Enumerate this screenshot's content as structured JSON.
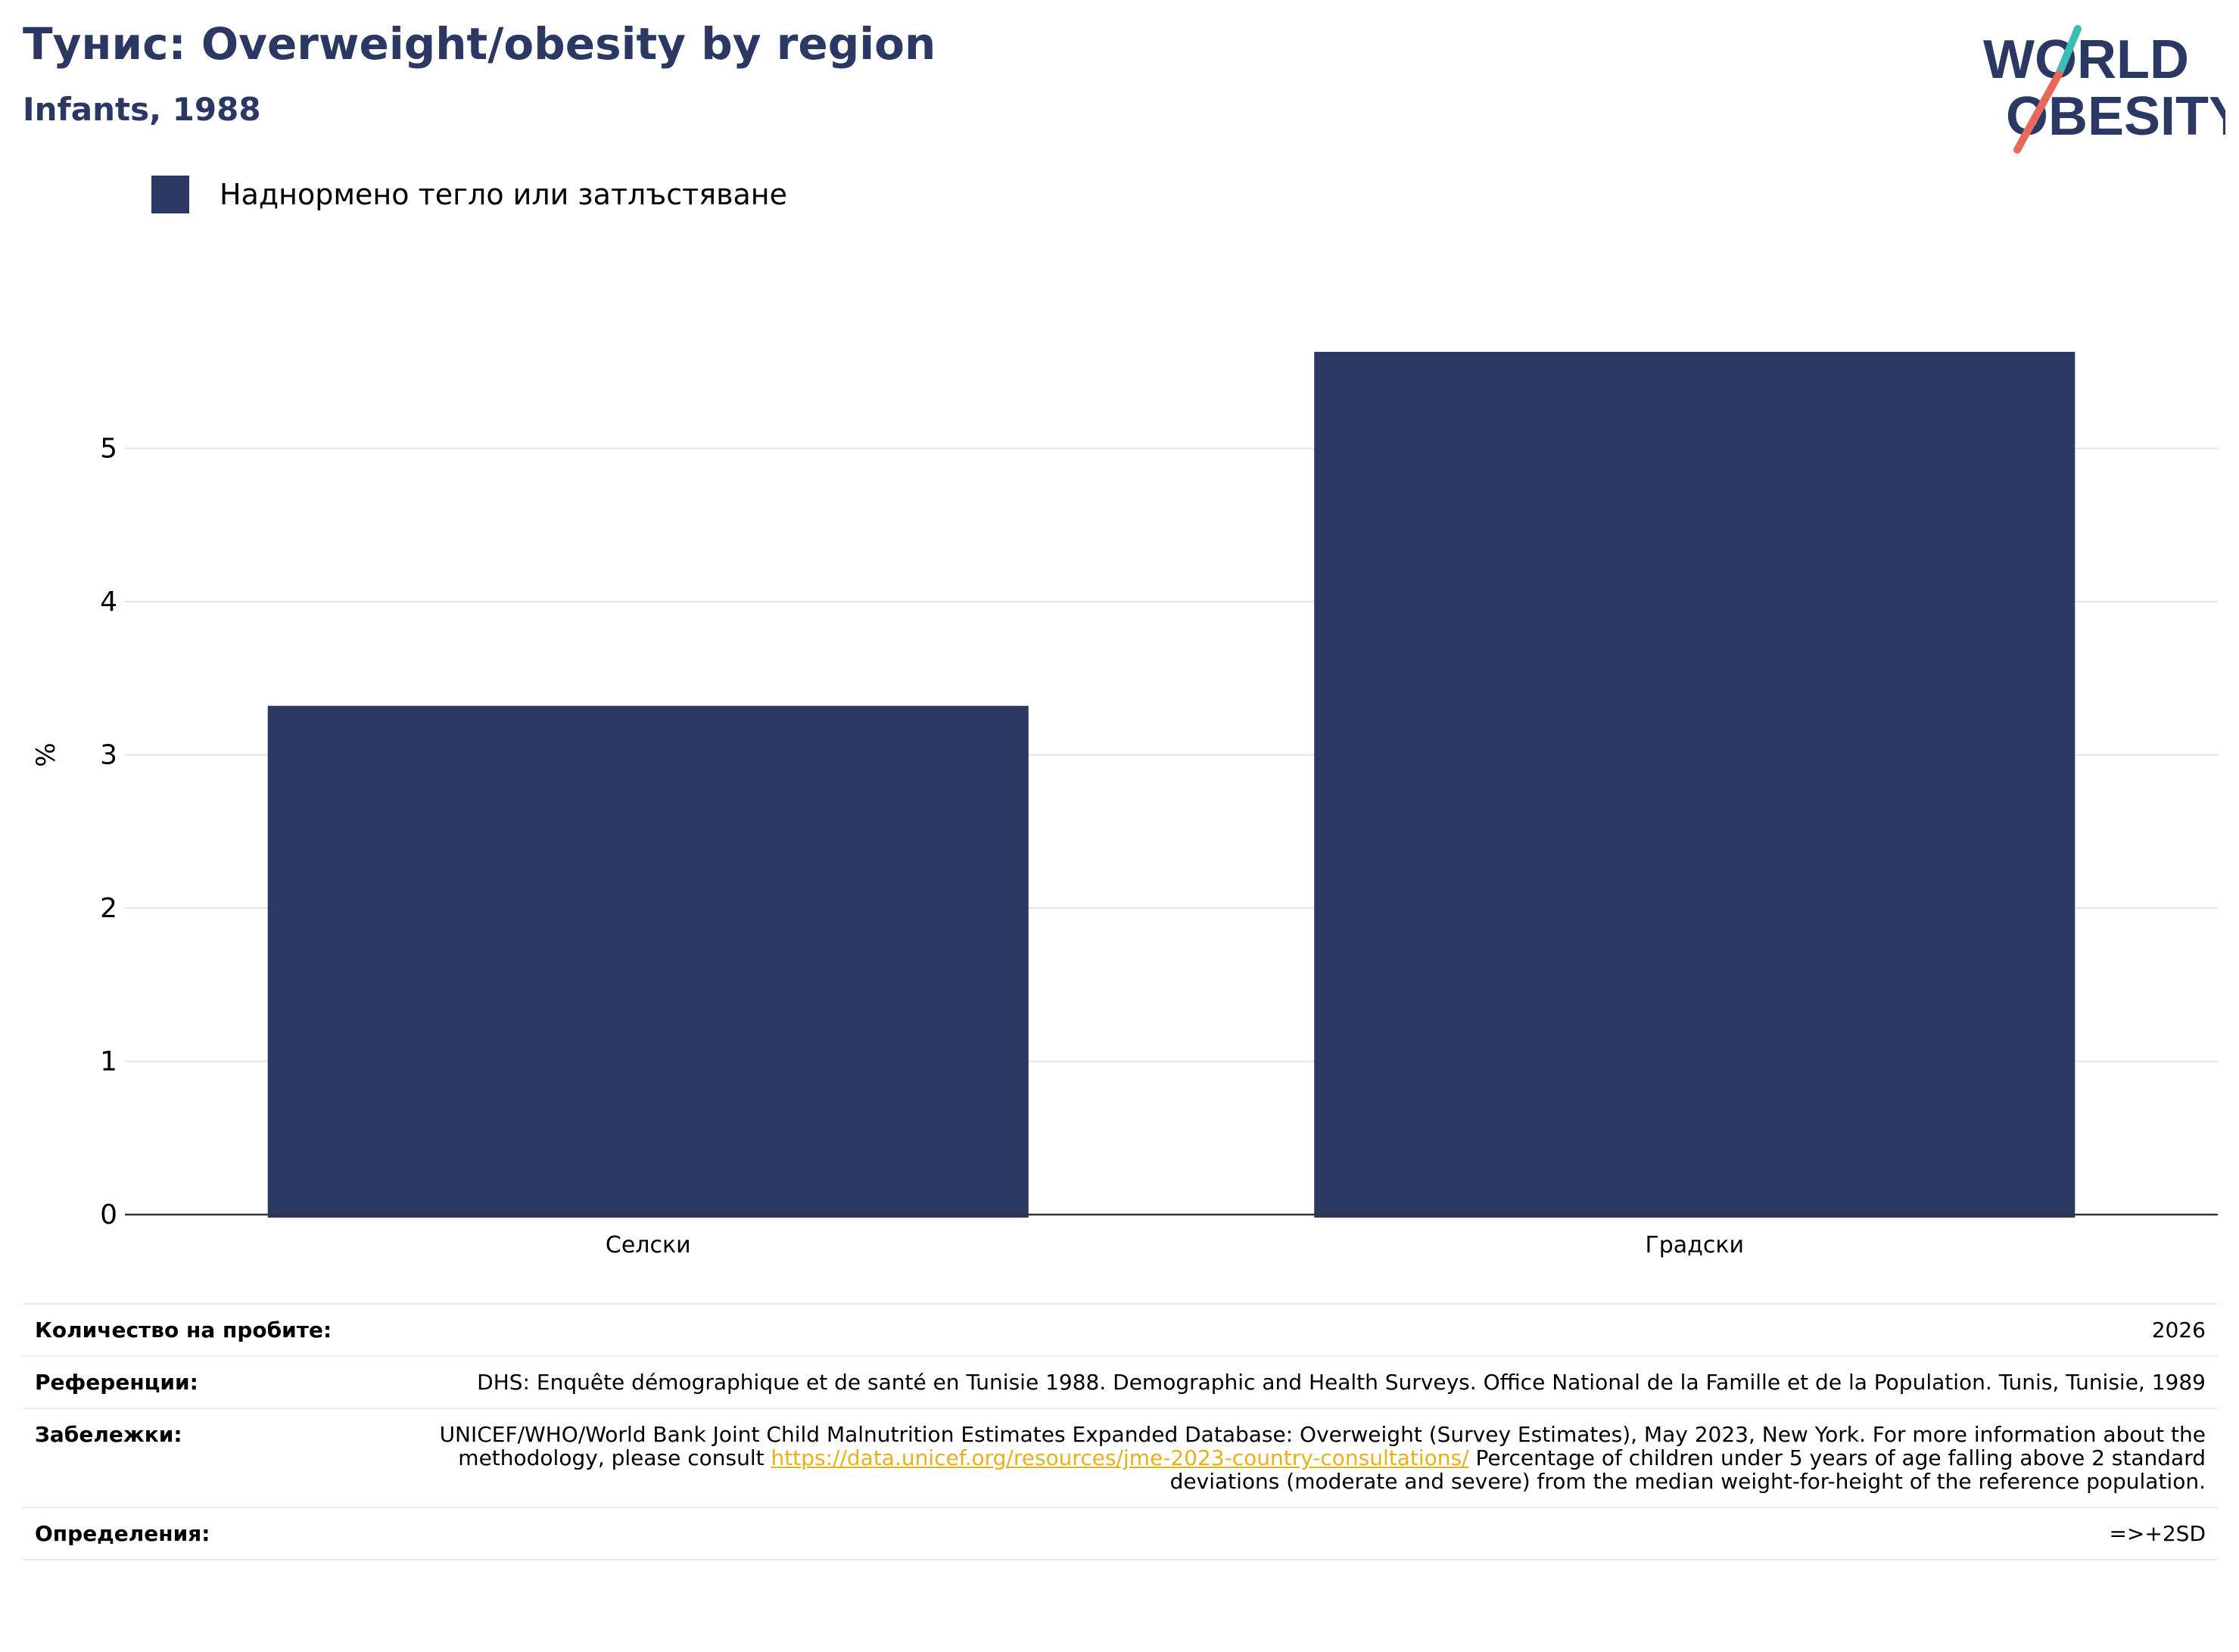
{
  "header": {
    "title": "Тунис: Overweight/obesity by region",
    "subtitle": "Infants, 1988"
  },
  "logo": {
    "line1": "WORLD",
    "line2": "OBESITY",
    "colors": {
      "text": "#2b3863",
      "slash_top": "#3bbfb5",
      "slash_bottom": "#e8685a"
    }
  },
  "legend": {
    "items": [
      {
        "label": "Наднормено тегло или затлъстяване",
        "color": "#2b3863"
      }
    ]
  },
  "chart_data": {
    "type": "bar",
    "categories": [
      "Селски",
      "Градски"
    ],
    "series": [
      {
        "name": "Наднормено тегло или затлъстяване",
        "values": [
          3.32,
          5.63
        ],
        "color": "#2b3863"
      }
    ],
    "ylabel": "%",
    "ylim": [
      0,
      6
    ],
    "yticks": [
      0,
      1,
      2,
      3,
      4,
      5
    ],
    "grid": true,
    "legend_position": "top-left"
  },
  "meta": {
    "sample_size": {
      "label": "Количество на пробите:",
      "value": "2026"
    },
    "references": {
      "label": "Референции:",
      "value": "DHS: Enquête démographique et de santé en Tunisie 1988. Demographic and Health Surveys. Office National de la Famille et de la Population. Tunis, Tunisie, 1989"
    },
    "notes": {
      "label": "Забележки:",
      "before": "UNICEF/WHO/World Bank Joint Child Malnutrition Estimates Expanded Database: Overweight (Survey Estimates), May 2023, New York. For more information about the methodology, please consult ",
      "link": "https://data.unicef.org/resources/jme-2023-country-consultations/",
      "after": " Percentage of children under 5 years of age falling above 2 standard deviations (moderate and severe) from the median weight-for-height of the reference population."
    },
    "definitions": {
      "label": "Определения:",
      "value": "=>+2SD"
    }
  }
}
